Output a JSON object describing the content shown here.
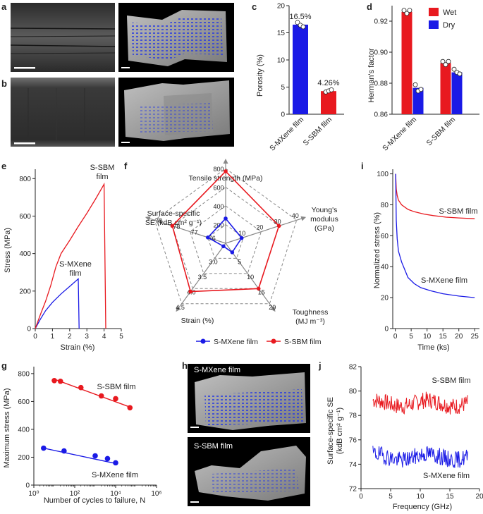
{
  "colors": {
    "red": "#e8191f",
    "blue": "#1a1ae6",
    "axis": "#222222",
    "gray": "#888888",
    "photo": "#0b0b0b"
  },
  "panel_labels": [
    "a",
    "b",
    "c",
    "d",
    "e",
    "f",
    "g",
    "h",
    "i",
    "j"
  ],
  "chart_data": [
    {
      "panel": "c",
      "type": "bar",
      "categories": [
        "S-MXene film",
        "S-SBM film"
      ],
      "values": [
        16.5,
        4.26
      ],
      "value_labels": [
        "16.5%",
        "4.26%"
      ],
      "bar_colors": [
        "#1a1ae6",
        "#e8191f"
      ],
      "replicates": [
        [
          16.9,
          16.4,
          16.1
        ],
        [
          4.1,
          4.3,
          4.5
        ]
      ],
      "ylabel": "Porosity (%)",
      "ylim": [
        0,
        20
      ],
      "yticks": [
        0,
        5,
        10,
        15,
        20
      ]
    },
    {
      "panel": "d",
      "type": "bar",
      "categories": [
        "S-MXene film",
        "S-SBM film"
      ],
      "series": [
        {
          "name": "Wet",
          "color": "#e8191f",
          "values": [
            0.926,
            0.893
          ],
          "replicates": [
            [
              0.927,
              0.925,
              0.927
            ],
            [
              0.894,
              0.892,
              0.894
            ]
          ]
        },
        {
          "name": "Dry",
          "color": "#1a1ae6",
          "values": [
            0.877,
            0.887
          ],
          "replicates": [
            [
              0.879,
              0.875,
              0.876
            ],
            [
              0.889,
              0.887,
              0.886
            ]
          ]
        }
      ],
      "ylabel": "Herman's factor",
      "ylim": [
        0.86,
        0.93
      ],
      "yticks": [
        0.86,
        0.88,
        0.9,
        0.92
      ],
      "ytick_labels": [
        "0.86",
        "0.88",
        "0.90",
        "0.92"
      ],
      "legend": "top-right"
    },
    {
      "panel": "e",
      "type": "line",
      "series": [
        {
          "name": "S-MXene film",
          "color": "#1a1ae6",
          "points": [
            [
              0,
              0
            ],
            [
              0.3,
              50
            ],
            [
              0.6,
              95
            ],
            [
              1.0,
              140
            ],
            [
              1.5,
              185
            ],
            [
              2.0,
              225
            ],
            [
              2.5,
              265
            ],
            [
              2.55,
              0
            ]
          ]
        },
        {
          "name": "S-SBM film",
          "color": "#e8191f",
          "points": [
            [
              0,
              0
            ],
            [
              0.3,
              75
            ],
            [
              0.6,
              145
            ],
            [
              0.9,
              230
            ],
            [
              1.2,
              330
            ],
            [
              1.5,
              400
            ],
            [
              2.0,
              470
            ],
            [
              2.5,
              545
            ],
            [
              3.0,
              615
            ],
            [
              3.5,
              690
            ],
            [
              4.0,
              770
            ],
            [
              4.1,
              0
            ]
          ]
        }
      ],
      "series_labels": [
        [
          "S-MXene",
          "film"
        ],
        [
          "S-SBM",
          "film"
        ]
      ],
      "xlabel": "Strain (%)",
      "ylabel": "Stress (MPa)",
      "xlim": [
        0,
        5
      ],
      "ylim": [
        0,
        850
      ],
      "xticks": [
        0,
        1,
        2,
        3,
        4,
        5
      ],
      "yticks": [
        0,
        200,
        400,
        600,
        800
      ]
    },
    {
      "panel": "f",
      "type": "radar",
      "axes": [
        {
          "label": [
            "Tensile strength (MPa)"
          ],
          "ticks": [
            "200",
            "400",
            "600",
            "800"
          ]
        },
        {
          "label": [
            "Young's",
            "modulus",
            "(GPa)"
          ],
          "ticks": [
            "10",
            "20",
            "30",
            "40"
          ]
        },
        {
          "label": [
            "Toughness",
            "(MJ m⁻³)"
          ],
          "ticks": [
            "5",
            "10",
            "15",
            "20"
          ]
        },
        {
          "label": [
            "Strain (%)"
          ],
          "ticks": [
            "3.0",
            "3.5",
            "4.0",
            "4.5"
          ]
        },
        {
          "label": [
            "Surface-specific",
            "SE (kdB cm² g⁻¹)"
          ],
          "ticks": [
            "76",
            "77",
            "78",
            "79"
          ]
        }
      ],
      "series": [
        {
          "name": "S-MXene film",
          "color": "#1a1ae6",
          "values": [
            265,
            9,
            3,
            2.55,
            76
          ]
        },
        {
          "name": "S-SBM film",
          "color": "#e8191f",
          "values": [
            770,
            30,
            15,
            4.1,
            78
          ]
        }
      ],
      "legend": "bottom"
    },
    {
      "panel": "i",
      "type": "line",
      "series": [
        {
          "name": "S-SBM film",
          "color": "#e8191f",
          "points": [
            [
              0.1,
              100
            ],
            [
              0.3,
              90
            ],
            [
              0.6,
              86
            ],
            [
              1,
              83
            ],
            [
              2,
              80
            ],
            [
              4,
              77
            ],
            [
              6,
              75.5
            ],
            [
              9,
              74
            ],
            [
              12,
              73
            ],
            [
              16,
              72
            ],
            [
              20,
              71.5
            ],
            [
              25,
              71
            ]
          ]
        },
        {
          "name": "S-MXene film",
          "color": "#1a1ae6",
          "points": [
            [
              0.1,
              100
            ],
            [
              0.3,
              70
            ],
            [
              0.6,
              58
            ],
            [
              1,
              50
            ],
            [
              2,
              43
            ],
            [
              3,
              38
            ],
            [
              4,
              33
            ],
            [
              6,
              29
            ],
            [
              8,
              26.5
            ],
            [
              11,
              24.5
            ],
            [
              15,
              22.5
            ],
            [
              20,
              21
            ],
            [
              25,
              20
            ]
          ]
        }
      ],
      "xlabel": "Time (ks)",
      "ylabel": "Normalized stress (%)",
      "xlim": [
        -0.8,
        26.5
      ],
      "ylim": [
        0,
        103
      ],
      "xticks": [
        0,
        5,
        10,
        15,
        20,
        25
      ],
      "yticks": [
        0,
        20,
        40,
        60,
        80,
        100
      ]
    },
    {
      "panel": "g",
      "type": "scatter",
      "series": [
        {
          "name": "S-SBM film",
          "color": "#e8191f",
          "points": [
            [
              10,
              750
            ],
            [
              20,
              745
            ],
            [
              200,
              700
            ],
            [
              2000,
              640
            ],
            [
              10000,
              620
            ],
            [
              50000,
              555
            ]
          ],
          "fit": [
            [
              10,
              760
            ],
            [
              50000,
              560
            ]
          ]
        },
        {
          "name": "S-MXene film",
          "color": "#1a1ae6",
          "points": [
            [
              3,
              265
            ],
            [
              30,
              245
            ],
            [
              1000,
              210
            ],
            [
              4000,
              190
            ],
            [
              10000,
              160
            ]
          ],
          "fit": [
            [
              3,
              265
            ],
            [
              10000,
              155
            ]
          ]
        }
      ],
      "xlabel": "Number of cycles to failure, N",
      "ylabel": "Maximum stress (MPa)",
      "xscale": "log",
      "xlim": [
        1,
        1000000
      ],
      "ylim": [
        0,
        850
      ],
      "xticks": [
        1,
        100,
        10000,
        1000000
      ],
      "xtick_labels": [
        "10⁰",
        "10²",
        "10⁴",
        "10⁶"
      ],
      "yticks": [
        0,
        200,
        400,
        600,
        800
      ]
    },
    {
      "panel": "j",
      "type": "line",
      "series": [
        {
          "name": "S-SBM film",
          "color": "#e8191f",
          "mean": 79.0,
          "amp": 0.7,
          "freq_range": [
            2,
            18
          ],
          "n": 170,
          "seed": 7
        },
        {
          "name": "S-MXene film",
          "color": "#1a1ae6",
          "mean": 74.6,
          "amp": 0.7,
          "freq_range": [
            2,
            18
          ],
          "n": 170,
          "seed": 19
        }
      ],
      "xlabel": "Frequency (GHz)",
      "ylabel": [
        "Surface-specific SE",
        "(kdB cm² g⁻¹)"
      ],
      "xlim": [
        0,
        20
      ],
      "ylim": [
        72,
        82
      ],
      "xticks": [
        0,
        5,
        10,
        15,
        20
      ],
      "yticks": [
        72,
        74,
        76,
        78,
        80,
        82
      ]
    }
  ],
  "images": {
    "h_labels": [
      "S-MXene film",
      "S-SBM film"
    ]
  }
}
